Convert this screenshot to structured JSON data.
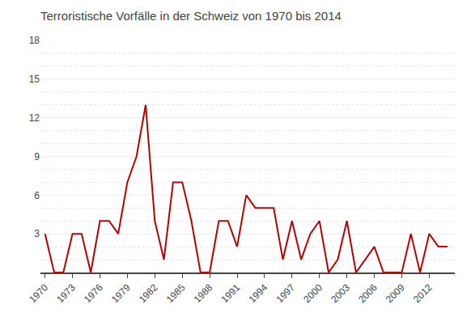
{
  "chart_data": {
    "type": "line",
    "title": "Terroristische Vorfälle in der Schweiz von 1970 bis 2014",
    "x": [
      1970,
      1971,
      1972,
      1973,
      1974,
      1975,
      1976,
      1977,
      1978,
      1979,
      1980,
      1981,
      1982,
      1983,
      1984,
      1985,
      1986,
      1987,
      1988,
      1989,
      1990,
      1991,
      1992,
      1993,
      1994,
      1995,
      1996,
      1997,
      1998,
      1999,
      2000,
      2001,
      2002,
      2003,
      2004,
      2005,
      2006,
      2007,
      2008,
      2009,
      2010,
      2011,
      2012,
      2013,
      2014
    ],
    "values": [
      3,
      0,
      0,
      3,
      3,
      0,
      4,
      4,
      3,
      7,
      9,
      13,
      4,
      1,
      7,
      7,
      4,
      0,
      0,
      4,
      4,
      2,
      6,
      5,
      5,
      5,
      1,
      4,
      1,
      3,
      4,
      0,
      1,
      4,
      0,
      1,
      2,
      0,
      0,
      0,
      3,
      0,
      3,
      2,
      2
    ],
    "color": "#bb0000",
    "xlim": [
      1969.5,
      2014.8
    ],
    "xticks": [
      1970,
      1973,
      1976,
      1979,
      1982,
      1985,
      1988,
      1991,
      1994,
      1997,
      2000,
      2003,
      2006,
      2009,
      2012
    ],
    "ylim": [
      0,
      18
    ],
    "yticks": [
      3,
      6,
      9,
      12,
      15,
      18
    ],
    "grid": true
  }
}
